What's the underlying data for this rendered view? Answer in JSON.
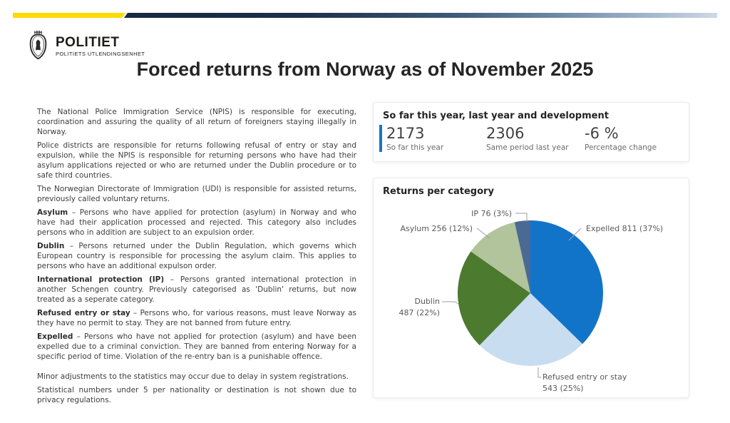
{
  "header": {
    "brand": {
      "name": "POLITIET",
      "subtitle": "POLITIETS UTLENDINGSENHET"
    },
    "title": "Forced returns from Norway as of November 2025"
  },
  "colors": {
    "bar_yellow": "#FFD900",
    "bar_navy": "#17293F",
    "bar_light": "#CDD9E6",
    "accent_blue": "#1878BE",
    "label_gray": "#595959"
  },
  "left_column": {
    "paragraphs": [
      {
        "bold": "",
        "text": "The National Police Immigration Service (NPIS) is responsible for executing, coordination and assuring the quality of all return of foreigners staying illegally in Norway."
      },
      {
        "bold": "",
        "text": "Police districts are responsible for returns following refusal of entry or stay and expulsion, while the NPIS is responsible for returning persons who have had their asylum applications rejected or who are returned under the Dublin procedure or to safe third countries."
      },
      {
        "bold": "",
        "text": "The Norwegian Directorate of Immigration (UDI) is responsible for assisted returns, previously called voluntary returns."
      },
      {
        "bold": "Asylum",
        "text": " – Persons who have applied for protection (asylum) in Norway and who have had their application processed and rejected. This category also includes persons who in addition are subject to an expulsion order."
      },
      {
        "bold": "Dublin",
        "text": " – Persons returned under the Dublin Regulation, which governs which European country is responsible for processing the asylum claim. This applies to persons who have an additional expulson order."
      },
      {
        "bold": "International protection (IP)",
        "text": " – Persons granted international protection in another Schengen country. Previously categorised as 'Dublin' returns, but now treated as a seperate category."
      },
      {
        "bold": "Refused entry or stay",
        "text": " – Persons who, for various reasons, must leave Norway as they have no permit to stay. They are not banned from future entry."
      },
      {
        "bold": "Expelled",
        "text": " – Persons who have not applied for protection (asylum) and have been expelled due to a criminal conviction. They are banned from entering Norway for a specific period of time. Violation of the re-entry ban is a punishable offence."
      },
      {
        "bold": "",
        "text": "Minor adjustments to the statistics may occur due to delay in system registrations."
      },
      {
        "bold": "",
        "text": "Statistical numbers under 5 per nationality or destination is not shown due to privacy regulations."
      }
    ]
  },
  "kpi_card": {
    "title": "So far this year, last year and development",
    "stats": [
      {
        "value": "2173",
        "label": "So far this year",
        "accent": true
      },
      {
        "value": "2306",
        "label": "Same period last year",
        "accent": false
      },
      {
        "value": "-6 %",
        "label": "Percentage change",
        "accent": false
      }
    ]
  },
  "chart_card": {
    "title": "Returns per category"
  },
  "chart_data": {
    "type": "pie",
    "title": "Returns per category",
    "total": 2173,
    "start_angle_deg": 0,
    "direction": "clockwise",
    "legend_position": "callout-labels",
    "slices": [
      {
        "label": "Expelled",
        "value": 811,
        "pct": 37,
        "color": "#1274C9"
      },
      {
        "label": "Refused entry or stay",
        "value": 543,
        "pct": 25,
        "color": "#C9DDF1"
      },
      {
        "label": "Dublin",
        "value": 487,
        "pct": 22,
        "color": "#4C7A2E"
      },
      {
        "label": "Asylum",
        "value": 256,
        "pct": 12,
        "color": "#B1C49B"
      },
      {
        "label": "IP",
        "value": 76,
        "pct": 3,
        "color": "#4A6A94"
      }
    ]
  }
}
